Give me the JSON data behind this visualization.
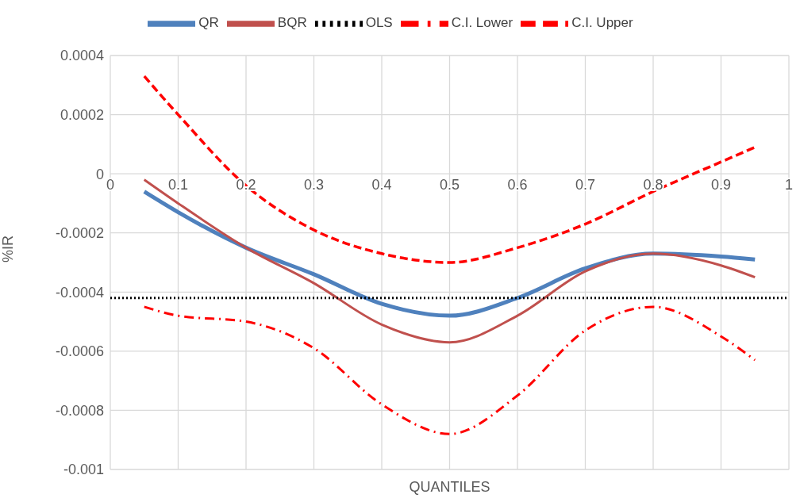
{
  "chart_data": {
    "type": "line",
    "xlabel": "QUANTILES",
    "ylabel": "%IR",
    "xlim": [
      0,
      1
    ],
    "xticks": [
      0,
      0.1,
      0.2,
      0.3,
      0.4,
      0.5,
      0.6,
      0.7,
      0.8,
      0.9,
      1
    ],
    "ylim": [
      -0.001,
      0.0004
    ],
    "yticks": [
      -0.001,
      -0.0008,
      -0.0006,
      -0.0004,
      -0.0002,
      0,
      0.0002,
      0.0004
    ],
    "grid": true,
    "legend": "top",
    "marker": "none",
    "series": [
      {
        "name": "QR",
        "color": "#4f81bd",
        "line_style": "solid",
        "x": [
          0.05,
          0.1,
          0.2,
          0.3,
          0.4,
          0.5,
          0.6,
          0.7,
          0.8,
          0.9,
          0.95
        ],
        "values": [
          -6e-05,
          -0.00013,
          -0.00025,
          -0.00034,
          -0.00044,
          -0.00048,
          -0.00042,
          -0.00032,
          -0.00027,
          -0.00028,
          -0.00029
        ]
      },
      {
        "name": "BQR",
        "color": "#c0504d",
        "line_style": "solid",
        "x": [
          0.05,
          0.1,
          0.2,
          0.3,
          0.4,
          0.5,
          0.6,
          0.7,
          0.8,
          0.9,
          0.95
        ],
        "values": [
          -2e-05,
          -0.0001,
          -0.00025,
          -0.00037,
          -0.00051,
          -0.00057,
          -0.00048,
          -0.00033,
          -0.00027,
          -0.00031,
          -0.00035
        ]
      },
      {
        "name": "OLS",
        "color": "#000000",
        "line_style": "dotted",
        "x": [
          0,
          1
        ],
        "values": [
          -0.00042,
          -0.00042
        ]
      },
      {
        "name": "C.I. Lower",
        "color": "#ff0000",
        "line_style": "dashdot",
        "x": [
          0.05,
          0.1,
          0.2,
          0.3,
          0.4,
          0.5,
          0.6,
          0.7,
          0.8,
          0.9,
          0.95
        ],
        "values": [
          -0.00045,
          -0.00048,
          -0.0005,
          -0.00059,
          -0.00078,
          -0.00088,
          -0.00075,
          -0.00053,
          -0.00045,
          -0.00055,
          -0.00063
        ]
      },
      {
        "name": "C.I. Upper",
        "color": "#ff0000",
        "line_style": "dashed",
        "x": [
          0.05,
          0.1,
          0.2,
          0.3,
          0.4,
          0.5,
          0.6,
          0.7,
          0.8,
          0.9,
          0.95
        ],
        "values": [
          0.00033,
          0.0002,
          -4e-05,
          -0.00019,
          -0.00027,
          -0.0003,
          -0.00025,
          -0.00017,
          -6e-05,
          4e-05,
          9e-05
        ]
      }
    ]
  }
}
